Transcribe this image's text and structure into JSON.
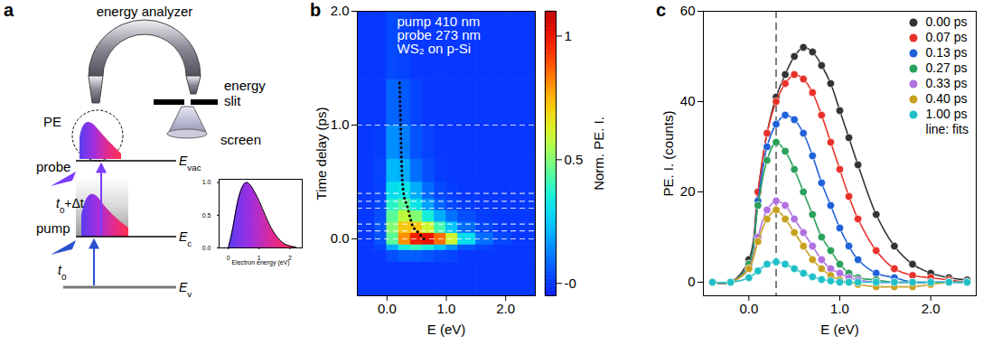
{
  "diagram": {
    "label": "a",
    "analyzer": "energy analyzer",
    "slit": [
      "energy",
      "slit"
    ],
    "screen": "screen",
    "photoelectrons": "PE",
    "probe": "probe",
    "pump": "pump",
    "levels": {
      "vac": {
        "base": "E",
        "sub": "vac"
      },
      "c": {
        "base": "E",
        "sub": "c"
      },
      "v": {
        "base": "E",
        "sub": "v"
      }
    },
    "probe_time": {
      "base": "t",
      "sub": "0",
      "tail": "+Δt"
    },
    "pump_time": {
      "base": "t",
      "sub": "0"
    },
    "inset": {
      "type": "area",
      "x_label": "Electron energy (eV)",
      "x": [
        0,
        0.1,
        0.2,
        0.3,
        0.4,
        0.5,
        0.6,
        0.7,
        0.8,
        1.0,
        1.2,
        1.4,
        1.6,
        1.8,
        2.0,
        2.2
      ],
      "values": [
        0,
        0.2,
        0.45,
        0.7,
        0.87,
        0.97,
        1.0,
        0.97,
        0.9,
        0.72,
        0.5,
        0.3,
        0.16,
        0.07,
        0.03,
        0.01
      ],
      "xlim": [
        -0.3,
        2.4
      ],
      "ylim": [
        0,
        1.05
      ],
      "xticks": [
        0,
        1,
        2
      ],
      "yticks": [
        {
          "value": 0,
          "label": "0.0"
        },
        0.5,
        {
          "value": 1,
          "label": "1.0"
        }
      ]
    }
  },
  "chart_data": [
    {
      "type": "heatmap",
      "title": "b",
      "annotations": [
        "pump 410 nm",
        "probe 273 nm",
        "WS₂ on p-Si"
      ],
      "x_label": "E (eV)",
      "y_label": "Time delay (ps)",
      "xlim": [
        -0.5,
        2.5
      ],
      "ylim": [
        -0.5,
        2.0
      ],
      "xticks": [
        {
          "value": 0,
          "label": "0.0"
        },
        {
          "value": 1,
          "label": "1.0"
        },
        {
          "value": 2,
          "label": "2.0"
        }
      ],
      "yticks": [
        {
          "value": 0,
          "label": "0.0"
        },
        {
          "value": 1,
          "label": "1.0"
        },
        {
          "value": 2,
          "label": "2.0"
        }
      ],
      "x_edges": [
        -0.5,
        -0.2,
        0,
        0.2,
        0.4,
        0.6,
        0.8,
        1.0,
        1.2,
        1.5,
        1.8,
        2.1,
        2.5
      ],
      "y_edges": [
        -0.5,
        -0.2,
        -0.1,
        -0.05,
        0.05,
        0.15,
        0.25,
        0.35,
        0.5,
        0.7,
        1.0,
        1.4,
        2.0
      ],
      "z": [
        [
          0,
          0,
          0,
          0,
          0,
          0,
          0,
          0,
          0,
          0,
          0,
          0
        ],
        [
          0,
          0,
          0.04,
          0.07,
          0.07,
          0.05,
          0.03,
          0.02,
          0,
          0,
          0,
          0
        ],
        [
          0,
          0.02,
          0.2,
          0.35,
          0.4,
          0.35,
          0.25,
          0.15,
          0.05,
          0.02,
          0,
          0
        ],
        [
          0,
          0.05,
          0.45,
          0.8,
          0.97,
          1.0,
          0.85,
          0.6,
          0.3,
          0.1,
          0.03,
          0
        ],
        [
          0,
          0.05,
          0.5,
          0.72,
          0.72,
          0.6,
          0.42,
          0.25,
          0.1,
          0.03,
          0,
          0
        ],
        [
          0,
          0.04,
          0.45,
          0.58,
          0.5,
          0.35,
          0.2,
          0.1,
          0.04,
          0.01,
          0,
          0
        ],
        [
          0,
          0.03,
          0.38,
          0.45,
          0.32,
          0.18,
          0.08,
          0.03,
          0.01,
          0,
          0,
          0
        ],
        [
          0,
          0.02,
          0.3,
          0.32,
          0.2,
          0.09,
          0.03,
          0.01,
          0,
          0,
          0,
          0
        ],
        [
          0,
          0.02,
          0.22,
          0.2,
          0.1,
          0.04,
          0.01,
          0,
          0,
          0,
          0,
          0
        ],
        [
          0,
          0.01,
          0.15,
          0.12,
          0.05,
          0.02,
          0,
          0,
          0,
          0,
          0,
          0
        ],
        [
          0,
          0,
          0.08,
          0.06,
          0.02,
          0,
          0,
          0,
          0,
          0,
          0,
          0
        ],
        [
          0,
          0,
          0.03,
          0.02,
          0,
          0,
          0,
          0,
          0,
          0,
          0,
          0
        ]
      ],
      "colorbar": {
        "label": "Norm. PE. I.",
        "range": [
          -0.05,
          1.1
        ],
        "ticks": [
          {
            "value": 0,
            "label": "-0"
          },
          0.5,
          1
        ]
      },
      "hlines": [
        0,
        0.07,
        0.13,
        0.27,
        0.33,
        0.4,
        1.0
      ],
      "peak_trace": {
        "x": [
          0.62,
          0.5,
          0.42,
          0.35,
          0.31,
          0.28,
          0.25,
          0.23,
          0.21
        ],
        "y": [
          0.0,
          0.07,
          0.13,
          0.27,
          0.33,
          0.4,
          0.6,
          1.0,
          1.4
        ],
        "line_style": "dotted",
        "color": "#000000"
      }
    },
    {
      "type": "scatter",
      "title": "c",
      "x_label": "E (eV)",
      "y_label": "PE. I. (counts)",
      "xlim": [
        -0.5,
        2.5
      ],
      "ylim": [
        -3,
        60
      ],
      "xticks": [
        {
          "value": 0,
          "label": "0.0"
        },
        {
          "value": 1,
          "label": "1.0"
        },
        {
          "value": 2,
          "label": "2.0"
        }
      ],
      "yticks": [
        0,
        20,
        40,
        60
      ],
      "legend": "top-right",
      "annotations": [
        "line: fits"
      ],
      "vlines": [
        0.3
      ],
      "x": [
        -0.4,
        -0.2,
        0,
        0.1,
        0.2,
        0.3,
        0.4,
        0.5,
        0.6,
        0.7,
        0.8,
        0.9,
        1.0,
        1.1,
        1.2,
        1.4,
        1.6,
        1.8,
        2.0,
        2.2,
        2.4
      ],
      "series": [
        {
          "name": "0.00 ps",
          "color": "#333333",
          "marker": "circle",
          "line_style": "solid",
          "values": [
            0,
            0,
            5,
            20,
            33,
            41,
            46,
            50,
            52,
            51,
            48,
            44,
            38,
            32,
            26,
            15,
            8,
            4,
            2,
            1,
            0.5
          ]
        },
        {
          "name": "0.07 ps",
          "color": "#e8312a",
          "marker": "circle",
          "line_style": "solid",
          "values": [
            0,
            0,
            4,
            20,
            33,
            40,
            44,
            46,
            45,
            42,
            37,
            31,
            25,
            19,
            14,
            7,
            3,
            1.5,
            1,
            0.5,
            0
          ]
        },
        {
          "name": "0.13 ps",
          "color": "#2060d8",
          "marker": "circle",
          "line_style": "solid",
          "values": [
            0,
            0,
            4,
            18,
            30,
            35,
            37,
            36,
            33,
            28,
            22,
            17,
            12,
            8,
            5,
            2,
            1,
            0,
            0,
            0,
            0
          ]
        },
        {
          "name": "0.27 ps",
          "color": "#2aa05a",
          "marker": "circle",
          "line_style": "solid",
          "values": [
            0,
            0,
            4,
            17,
            27,
            31,
            29,
            25,
            20,
            15,
            10,
            7,
            4,
            2,
            1,
            0.5,
            0,
            0,
            0,
            0,
            0
          ]
        },
        {
          "name": "0.33 ps",
          "color": "#b070e0",
          "marker": "circle",
          "line_style": "solid",
          "values": [
            0,
            0,
            3,
            10,
            16,
            18,
            17,
            14,
            11,
            8,
            5,
            3,
            2,
            1,
            0.5,
            0,
            0,
            0,
            0,
            0,
            0
          ]
        },
        {
          "name": "0.40 ps",
          "color": "#c8a020",
          "marker": "circle",
          "line_style": "solid",
          "values": [
            0,
            0,
            3,
            9,
            14,
            16,
            14,
            11,
            8,
            5,
            3,
            1.5,
            0.5,
            0,
            -0.5,
            -1,
            -1,
            -1,
            -0.5,
            0,
            0
          ]
        },
        {
          "name": "1.00 ps",
          "color": "#20c0c8",
          "marker": "circle",
          "line_style": "solid",
          "values": [
            0,
            0,
            1,
            2.5,
            4,
            4.5,
            4,
            3,
            2,
            1.2,
            0.6,
            0.3,
            0,
            0,
            0,
            0,
            0,
            0,
            0,
            0,
            0
          ]
        }
      ]
    }
  ]
}
